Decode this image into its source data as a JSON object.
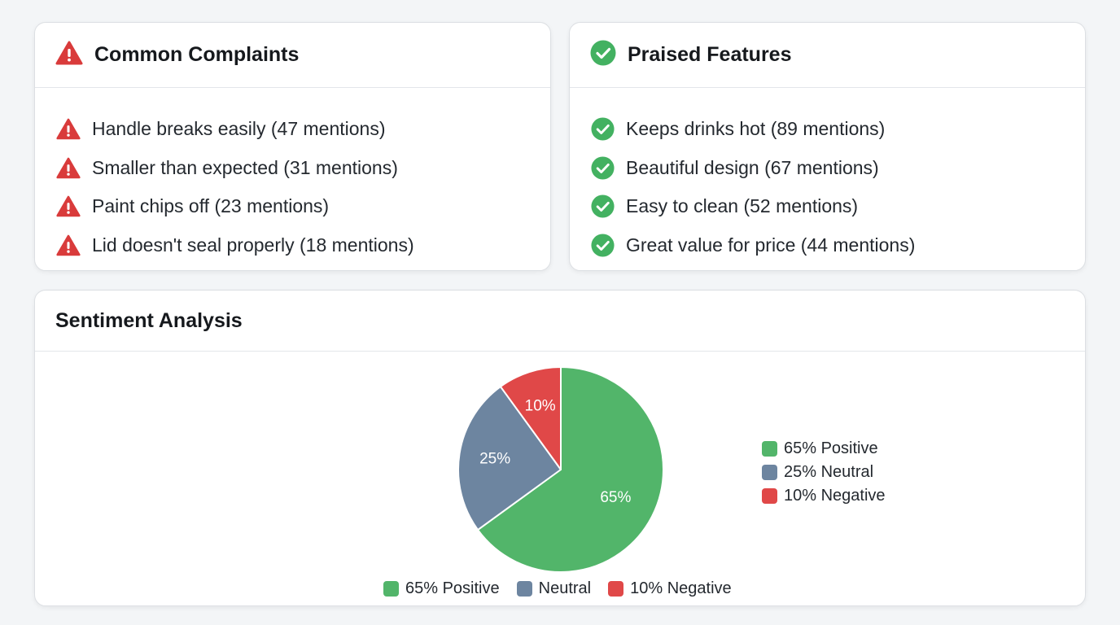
{
  "colors": {
    "positive": "#52b56a",
    "neutral": "#6d85a0",
    "negative": "#e04848",
    "warning_icon": "#d93b3b",
    "check_icon": "#43b161"
  },
  "complaints": {
    "title": "Common Complaints",
    "icon": "warning-triangle-icon",
    "items": [
      {
        "text": "Handle breaks easily (47 mentions)"
      },
      {
        "text": "Smaller than expected (31 mentions)"
      },
      {
        "text": "Paint chips off (23 mentions)"
      },
      {
        "text": "Lid doesn't seal properly (18 mentions)"
      }
    ]
  },
  "praised": {
    "title": "Praised Features",
    "icon": "check-circle-icon",
    "items": [
      {
        "text": "Keeps drinks hot (89 mentions)"
      },
      {
        "text": "Beautiful design (67 mentions)"
      },
      {
        "text": "Easy to clean (52 mentions)"
      },
      {
        "text": "Great value for price (44 mentions)"
      }
    ]
  },
  "sentiment": {
    "title": "Sentiment Analysis",
    "legend_right": [
      {
        "label": "65% Positive",
        "color_key": "positive"
      },
      {
        "label": "25% Neutral",
        "color_key": "neutral"
      },
      {
        "label": "10% Negative",
        "color_key": "negative"
      }
    ],
    "legend_bottom": [
      {
        "label": "65% Positive",
        "color_key": "positive"
      },
      {
        "label": "Neutral",
        "color_key": "neutral"
      },
      {
        "label": "10% Negative",
        "color_key": "negative"
      }
    ]
  },
  "chart_data": {
    "type": "pie",
    "title": "",
    "slices": [
      {
        "name": "Positive",
        "value": 65,
        "label": "65%",
        "color": "#52b56a"
      },
      {
        "name": "Neutral",
        "value": 25,
        "label": "25%",
        "color": "#6d85a0"
      },
      {
        "name": "Negative",
        "value": 10,
        "label": "10%",
        "color": "#e04848"
      }
    ],
    "legend": "right"
  }
}
